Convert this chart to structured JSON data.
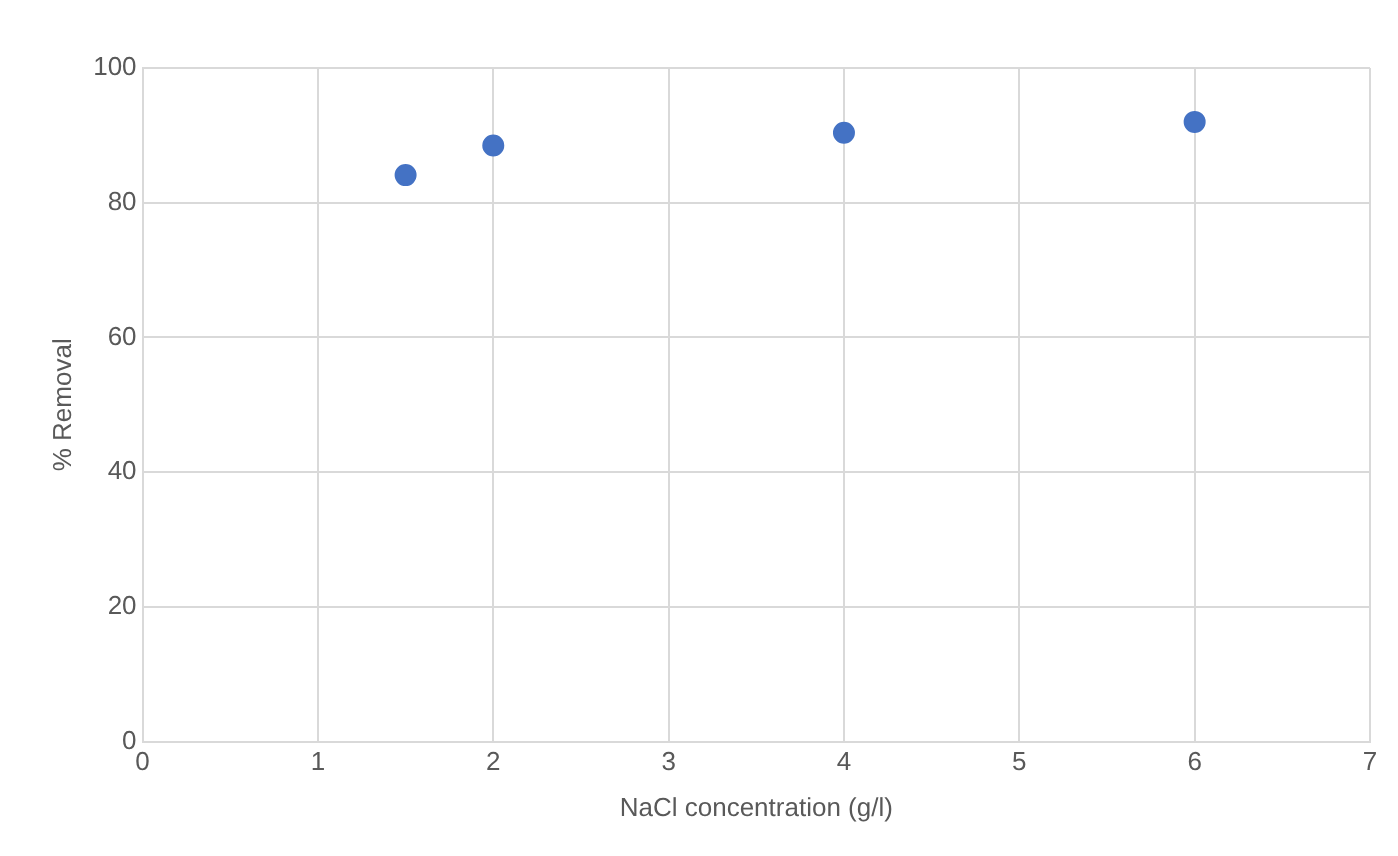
{
  "chart_data": {
    "type": "scatter",
    "xlabel": "NaCl concentration (g/l)",
    "ylabel": "% Removal",
    "x": [
      1.5,
      2,
      4,
      6
    ],
    "series": [
      {
        "color": "#4472c4",
        "values": [
          84.1,
          88.5,
          90.4,
          92
        ]
      }
    ],
    "xlim": [
      0,
      7
    ],
    "xticks": [
      0,
      1,
      2,
      3,
      4,
      5,
      6,
      7
    ],
    "ylim": [
      0,
      100
    ],
    "yticks": [
      0,
      20,
      40,
      60,
      80,
      100
    ],
    "grid": true,
    "legend": false,
    "marker": "circle"
  }
}
